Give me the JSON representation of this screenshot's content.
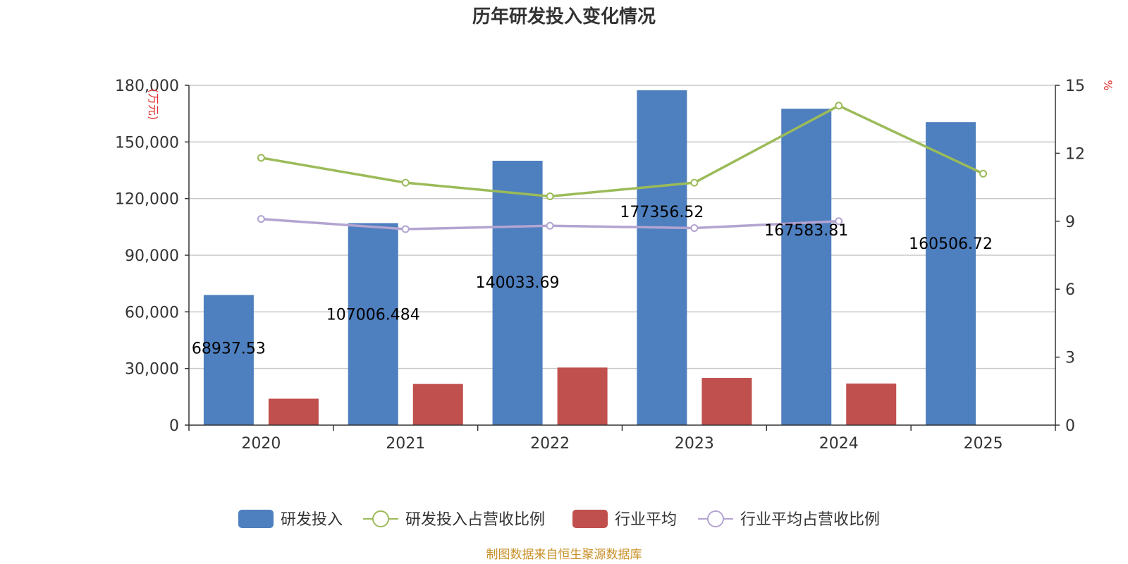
{
  "chart_data": {
    "type": "bar",
    "title": "历年研发投入变化情况",
    "ylabel_left": "(万元)",
    "ylabel_right": "%",
    "categories": [
      "2020",
      "2021",
      "2022",
      "2023",
      "2024",
      "2025"
    ],
    "y_left": {
      "range": [
        0,
        180000
      ],
      "ticks": [
        "0",
        "30,000",
        "60,000",
        "90,000",
        "120,000",
        "150,000",
        "180,000"
      ],
      "tick_values": [
        0,
        30000,
        60000,
        90000,
        120000,
        150000,
        180000
      ]
    },
    "y_right": {
      "range": [
        0,
        15
      ],
      "ticks": [
        "0",
        "3",
        "6",
        "9",
        "12",
        "15"
      ],
      "tick_values": [
        0,
        3,
        6,
        9,
        12,
        15
      ]
    },
    "grid": true,
    "legend_position": "bottom",
    "series": [
      {
        "name": "研发投入",
        "type": "bar",
        "axis": "left",
        "color": "#4e7fbf",
        "values": [
          68937.53,
          107006.484,
          140033.69,
          177356.52,
          167583.81,
          160506.72
        ],
        "labels": [
          "68937.53",
          "107006.484",
          "140033.69",
          "177356.52",
          "167583.81",
          "160506.72"
        ]
      },
      {
        "name": "研发投入占营收比例",
        "type": "line",
        "axis": "right",
        "color": "#9bbb59",
        "values": [
          11.8,
          10.7,
          10.1,
          10.7,
          14.1,
          11.1
        ]
      },
      {
        "name": "行业平均",
        "type": "bar",
        "axis": "left",
        "color": "#c0504d",
        "values": [
          14000,
          21800,
          30500,
          25000,
          22000,
          null
        ]
      },
      {
        "name": "行业平均占营收比例",
        "type": "line",
        "axis": "right",
        "color": "#b3a4d1",
        "values": [
          9.1,
          8.65,
          8.8,
          8.7,
          9.0,
          null
        ]
      }
    ]
  },
  "footer": {
    "source": "制图数据来自恒生聚源数据库"
  }
}
